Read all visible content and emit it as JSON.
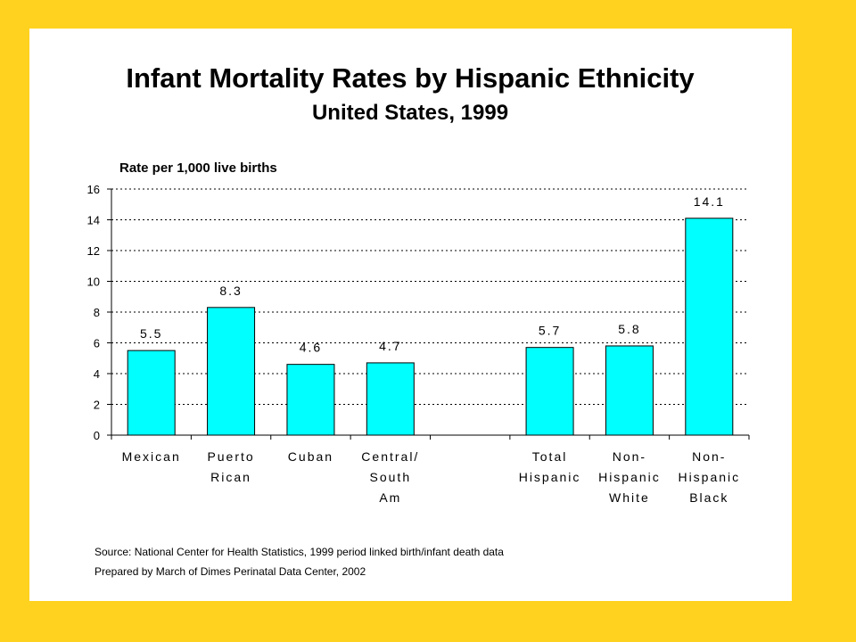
{
  "slide": {
    "background_color": "#FFD21F",
    "panel_color": "#FFFFFF",
    "title": "Infant Mortality Rates by Hispanic Ethnicity",
    "subtitle": "United States, 1999",
    "source_lines": [
      "Source: National Center for Health Statistics, 1999 period linked birth/infant death data",
      "Prepared by March of Dimes Perinatal Data Center, 2002"
    ]
  },
  "chart_data": {
    "type": "bar",
    "ylabel": "Rate per 1,000 live births",
    "ylim": [
      0,
      16
    ],
    "yticks": [
      0,
      2,
      4,
      6,
      8,
      10,
      12,
      14,
      16
    ],
    "grid": "dotted horizontal",
    "bar_color": "#00FFFF",
    "categories": [
      {
        "lines": [
          "Mexican"
        ],
        "value": 5.5,
        "label": "5.5"
      },
      {
        "lines": [
          "Puerto",
          "Rican"
        ],
        "value": 8.3,
        "label": "8.3"
      },
      {
        "lines": [
          "Cuban"
        ],
        "value": 4.6,
        "label": "4.6"
      },
      {
        "lines": [
          "Central/",
          "South",
          "Am"
        ],
        "value": 4.7,
        "label": "4.7"
      },
      {
        "lines": [],
        "value": null,
        "label": ""
      },
      {
        "lines": [
          "Total",
          "Hispanic"
        ],
        "value": 5.7,
        "label": "5.7"
      },
      {
        "lines": [
          "Non-",
          "Hispanic",
          "White"
        ],
        "value": 5.8,
        "label": "5.8"
      },
      {
        "lines": [
          "Non-",
          "Hispanic",
          "Black"
        ],
        "value": 14.1,
        "label": "14.1"
      }
    ]
  }
}
